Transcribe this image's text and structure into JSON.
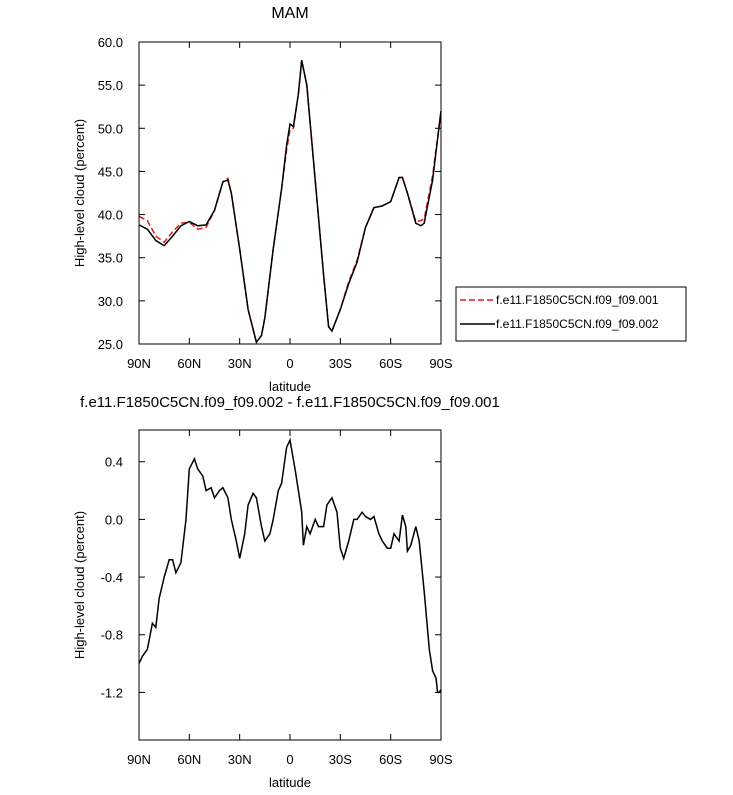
{
  "chart_data": [
    {
      "type": "line",
      "title": "MAM",
      "x_label": "latitude",
      "y_label": "High-level cloud (percent)",
      "x": [
        90,
        85,
        80,
        75,
        70,
        65,
        60,
        55,
        50,
        45,
        40,
        37,
        35,
        30,
        25,
        20,
        17,
        15,
        10,
        5,
        2,
        0,
        -2,
        -5,
        -7,
        -10,
        -15,
        -20,
        -23,
        -25,
        -30,
        -35,
        -40,
        -45,
        -50,
        -55,
        -60,
        -65,
        -67,
        -70,
        -75,
        -78,
        -80,
        -85,
        -90
      ],
      "series": [
        {
          "name": "f.e11.F1850C5CN.f09_f09.001",
          "color": "#e41a1c",
          "dash": true,
          "values": [
            39.8,
            39.3,
            37.5,
            36.8,
            38,
            39,
            39.1,
            38.3,
            38.5,
            40.5,
            43.8,
            44.2,
            42.5,
            36,
            29,
            25.2,
            26,
            28,
            36,
            43,
            47.5,
            49.8,
            50,
            54,
            57.8,
            55,
            44,
            33,
            27,
            26.5,
            29,
            32.2,
            34.7,
            38.5,
            40.8,
            41,
            41.5,
            44.3,
            44.3,
            42.5,
            39.2,
            39.3,
            39.5,
            44.5,
            52
          ]
        },
        {
          "name": "f.e11.F1850C5CN.f09_f09.002",
          "color": "#000000",
          "dash": false,
          "values": [
            38.8,
            38.3,
            37,
            36.4,
            37.5,
            38.7,
            39.2,
            38.7,
            38.8,
            40.5,
            43.8,
            44,
            42.5,
            36,
            29,
            25.2,
            26,
            28,
            36,
            43,
            48,
            50.5,
            50.2,
            54,
            57.9,
            55,
            44,
            33,
            27,
            26.5,
            29,
            32,
            34.5,
            38.5,
            40.8,
            41,
            41.5,
            44.3,
            44.3,
            42.5,
            39,
            38.7,
            39,
            44,
            52
          ]
        }
      ],
      "xlim": [
        90,
        -90
      ],
      "xticks": [
        {
          "value": 90,
          "label": "90N"
        },
        {
          "value": 60,
          "label": "60N"
        },
        {
          "value": 30,
          "label": "30N"
        },
        0,
        {
          "value": -30,
          "label": "30S"
        },
        {
          "value": -60,
          "label": "60S"
        },
        {
          "value": -90,
          "label": "90S"
        }
      ],
      "ylim": [
        25,
        60
      ],
      "yticks": [
        {
          "value": 25,
          "label": "25.0"
        },
        {
          "value": 30,
          "label": "30.0"
        },
        {
          "value": 35,
          "label": "35.0"
        },
        {
          "value": 40,
          "label": "40.0"
        },
        {
          "value": 45,
          "label": "45.0"
        },
        {
          "value": 50,
          "label": "50.0"
        },
        {
          "value": 55,
          "label": "55.0"
        },
        {
          "value": 60,
          "label": "60.0"
        }
      ],
      "legend": "right"
    },
    {
      "type": "line",
      "title": "f.e11.F1850C5CN.f09_f09.002 - f.e11.F1850C5CN.f09_f09.001",
      "x_label": "latitude",
      "y_label": "High-level cloud (percent)",
      "x": [
        90,
        88,
        85,
        82,
        80,
        78,
        75,
        72,
        70,
        68,
        65,
        62,
        60,
        57,
        55,
        52,
        50,
        47,
        45,
        42,
        40,
        37,
        35,
        32,
        30,
        27,
        25,
        22,
        20,
        17,
        15,
        12,
        10,
        7,
        5,
        2,
        0,
        -3,
        -5,
        -7,
        -8,
        -10,
        -12,
        -15,
        -17,
        -20,
        -22,
        -25,
        -28,
        -30,
        -32,
        -35,
        -38,
        -40,
        -43,
        -45,
        -48,
        -50,
        -53,
        -55,
        -58,
        -60,
        -62,
        -65,
        -67,
        -69,
        -70,
        -72,
        -75,
        -77,
        -80,
        -83,
        -85,
        -87,
        -88,
        -89,
        -90
      ],
      "series": [
        {
          "color": "#000000",
          "dash": false,
          "values": [
            -1.0,
            -0.95,
            -0.9,
            -0.72,
            -0.75,
            -0.55,
            -0.4,
            -0.28,
            -0.28,
            -0.37,
            -0.3,
            0.0,
            0.35,
            0.42,
            0.35,
            0.3,
            0.2,
            0.22,
            0.15,
            0.2,
            0.22,
            0.15,
            0.0,
            -0.15,
            -0.27,
            -0.1,
            0.1,
            0.18,
            0.15,
            -0.05,
            -0.15,
            -0.1,
            0.0,
            0.2,
            0.25,
            0.5,
            0.55,
            0.35,
            0.2,
            0.05,
            -0.18,
            -0.05,
            -0.1,
            0.0,
            -0.05,
            -0.05,
            0.1,
            0.15,
            0.05,
            -0.2,
            -0.27,
            -0.15,
            0.0,
            0.0,
            0.05,
            0.02,
            0.0,
            0.02,
            -0.1,
            -0.15,
            -0.2,
            -0.2,
            -0.1,
            -0.15,
            0.03,
            -0.05,
            -0.22,
            -0.18,
            -0.05,
            -0.15,
            -0.5,
            -0.9,
            -1.05,
            -1.1,
            -1.2,
            -1.2,
            -1.18
          ]
        }
      ],
      "xlim": [
        90,
        -90
      ],
      "xticks": [
        {
          "value": 90,
          "label": "90N"
        },
        {
          "value": 60,
          "label": "60N"
        },
        {
          "value": 30,
          "label": "30N"
        },
        0,
        {
          "value": -30,
          "label": "30S"
        },
        {
          "value": -60,
          "label": "60S"
        },
        {
          "value": -90,
          "label": "90S"
        }
      ],
      "ylim": [
        -1.53,
        0.62
      ],
      "yticks": [
        -1.2,
        -0.8,
        -0.4,
        {
          "value": 0,
          "label": "0.0"
        },
        0.4
      ]
    }
  ]
}
